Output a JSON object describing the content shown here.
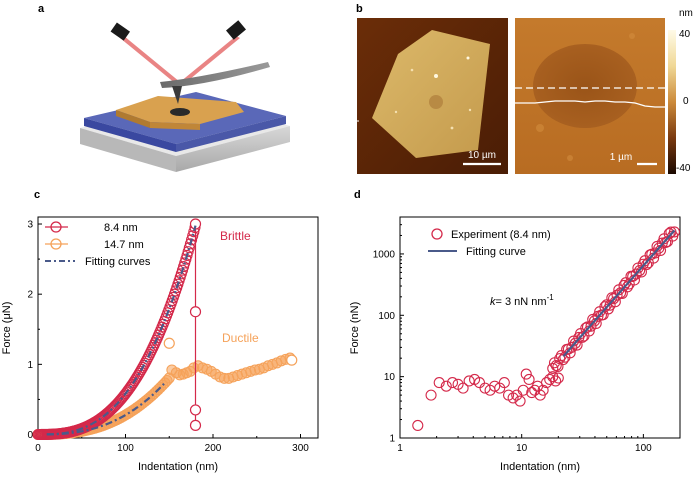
{
  "panels": {
    "a": {
      "letter": "a"
    },
    "b": {
      "letter": "b",
      "scale_left": "10 µm",
      "scale_right": "1 µm",
      "colorbar": {
        "unit": "nm",
        "max": "40",
        "mid": "0",
        "min": "-40"
      }
    },
    "c": {
      "letter": "c"
    },
    "d": {
      "letter": "d"
    }
  },
  "chart_data": [
    {
      "id": "c",
      "type": "scatter",
      "xlabel": "Indentation (nm)",
      "ylabel": "Force (μN)",
      "xlim": [
        0,
        320
      ],
      "ylim": [
        -0.05,
        3.1
      ],
      "xticks": [
        "0",
        "100",
        "200",
        "300"
      ],
      "yticks": [
        "0",
        "1",
        "2",
        "3"
      ],
      "legend": [
        "8.4 nm",
        "14.7 nm",
        "Fitting curves"
      ],
      "annotations": {
        "brittle": "Brittle",
        "ductile": "Ductile"
      },
      "colors": {
        "thin": "#d4294a",
        "thick": "#f5a25a",
        "fit": "#4a5a8a"
      },
      "series": [
        {
          "name": "8.4 nm",
          "model": "power",
          "a": 1.6e-06,
          "n": 2.78,
          "x_start": 0,
          "x_end": 180
        },
        {
          "name": "8.4 nm fracture drop",
          "x": [
            180,
            180,
            180,
            180
          ],
          "y": [
            3.0,
            1.75,
            0.35,
            0.13
          ]
        },
        {
          "name": "14.7 nm",
          "model": "power",
          "a": 1.6e-06,
          "n": 2.62,
          "x_start": 0,
          "x_end": 150
        },
        {
          "name": "14.7 nm ductile plateau",
          "x": [
            153,
            158,
            162,
            166,
            170,
            174,
            178,
            183,
            188,
            193,
            198,
            203,
            208,
            213,
            218,
            223,
            228,
            233,
            238,
            243,
            248,
            253,
            258,
            263,
            268,
            273,
            278,
            283,
            288
          ],
          "y": [
            0.92,
            0.88,
            0.85,
            0.86,
            0.88,
            0.9,
            0.95,
            0.98,
            0.95,
            0.93,
            0.9,
            0.86,
            0.82,
            0.8,
            0.8,
            0.82,
            0.84,
            0.86,
            0.88,
            0.9,
            0.92,
            0.93,
            0.95,
            0.98,
            1.0,
            1.02,
            1.05,
            1.07,
            1.09
          ]
        },
        {
          "name": "Fitting curves",
          "segments": [
            {
              "x_start": 10,
              "x_end": 180,
              "a": 1.6e-06,
              "n": 2.78
            },
            {
              "x_start": 10,
              "x_end": 145,
              "a": 1.6e-06,
              "n": 2.62
            }
          ]
        }
      ]
    },
    {
      "id": "d",
      "type": "scatter",
      "scale": "log-log",
      "xlabel": "Indentation (nm)",
      "ylabel": "Force (nN)",
      "xlim": [
        1,
        200
      ],
      "ylim": [
        1,
        4000
      ],
      "xticks": [
        "1",
        "10",
        "100"
      ],
      "yticks": [
        "1",
        "10",
        "100",
        "1000"
      ],
      "legend": [
        "Experiment (8.4 nm)",
        "Fitting curve"
      ],
      "annotation_k": "k",
      "annotation_rest": "= 3 nN nm",
      "annotation_sup": "-1",
      "colors": {
        "points": "#d4294a",
        "fit": "#4a5a8a"
      },
      "series": [
        {
          "name": "Experiment (8.4 nm)",
          "x": [
            1.4,
            1.8,
            2.1,
            2.4,
            2.7,
            3.0,
            3.3,
            3.7,
            4.1,
            4.5,
            5.0,
            5.5,
            6.0,
            6.6,
            7.2,
            7.8,
            8.5,
            9.1,
            9.7,
            10.3,
            10.9,
            11.5,
            12.1,
            12.8,
            13.5,
            14.2,
            15.0,
            16.0,
            17.0,
            18.0,
            19.0,
            20.0
          ],
          "y": [
            1.6,
            5.0,
            8.0,
            7.0,
            8.0,
            7.5,
            6.5,
            8.5,
            9.0,
            8.0,
            6.5,
            6.0,
            7.0,
            6.5,
            8.0,
            5.0,
            4.5,
            5.0,
            4.0,
            6.0,
            11.0,
            9.0,
            5.5,
            6.0,
            7.0,
            5.0,
            6.0,
            8.0,
            9.0,
            10.0,
            8.5,
            9.5
          ]
        },
        {
          "name": "Experiment dense (8.4 nm)",
          "model": "power",
          "a": 0.0204,
          "n": 2.25,
          "x_start": 18,
          "x_end": 180
        },
        {
          "name": "Fitting curve",
          "model": "power",
          "a": 0.0204,
          "n": 2.25,
          "x_start": 22,
          "x_end": 180
        }
      ]
    }
  ]
}
